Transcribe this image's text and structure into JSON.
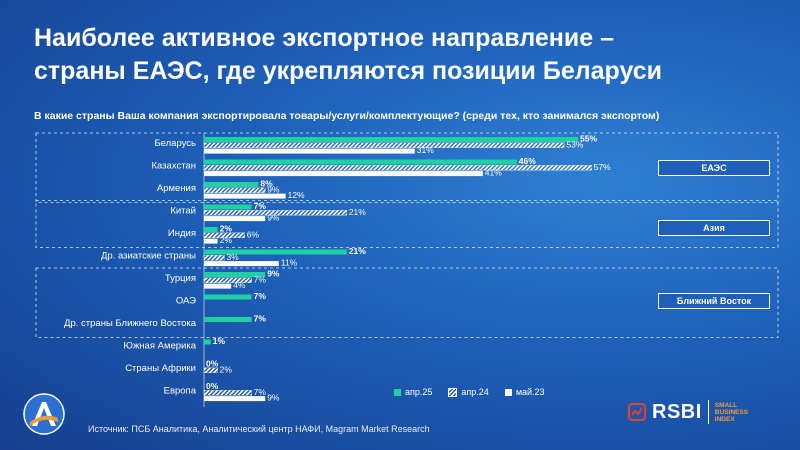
{
  "title_line1": "Наиболее активное экспортное направление –",
  "title_line2": "страны ЕАЭС, где укрепляются позиции Беларуси",
  "question": "В какие страны Ваша компания экспортировала товары/услуги/комплектующие? (среди тех, кто занимался экспортом)",
  "source": "Источник: ПСБ Аналитика, Аналитический центр НАФИ, Magram Market Research",
  "logo": {
    "name": "RSBI",
    "sub1": "SMALL",
    "sub2": "BUSINESS",
    "sub3": "INDEX"
  },
  "groups": [
    {
      "label": "ЕАЭС"
    },
    {
      "label": "Азия"
    },
    {
      "label": "Ближний Восток"
    }
  ],
  "colors": {
    "apr25": "#1fd1a1",
    "apr24": "#ffffff",
    "may23": "#ffffff"
  },
  "chart_data": {
    "type": "bar",
    "orientation": "horizontal",
    "categories": [
      "Беларусь",
      "Казахстан",
      "Армения",
      "Китай",
      "Индия",
      "Др. азиатские страны",
      "Турция",
      "ОАЭ",
      "Др. страны Ближнего Востока",
      "Южная Америка",
      "Страны Африки",
      "Европа"
    ],
    "series": [
      {
        "name": "апр.25",
        "values": [
          55,
          46,
          8,
          7,
          2,
          21,
          9,
          7,
          7,
          1,
          0,
          0
        ],
        "labels": [
          "55%",
          "46%",
          "8%",
          "7%",
          "2%",
          "21%",
          "9%",
          "7%",
          "7%",
          "1%",
          "0%",
          "0%"
        ]
      },
      {
        "name": "апр.24",
        "values": [
          53,
          57,
          9,
          21,
          6,
          3,
          7,
          null,
          null,
          null,
          2,
          7
        ],
        "labels": [
          "53%",
          "57%",
          "9%",
          "21%",
          "6%",
          "3%",
          "7%",
          "",
          "",
          "",
          "2%",
          "7%"
        ]
      },
      {
        "name": "май.23",
        "values": [
          31,
          41,
          12,
          9,
          2,
          11,
          4,
          null,
          null,
          null,
          null,
          9
        ],
        "labels": [
          "31%",
          "41%",
          "12%",
          "9%",
          "2%",
          "11%",
          "4%",
          "",
          "",
          "",
          "",
          "9%"
        ]
      }
    ]
  }
}
